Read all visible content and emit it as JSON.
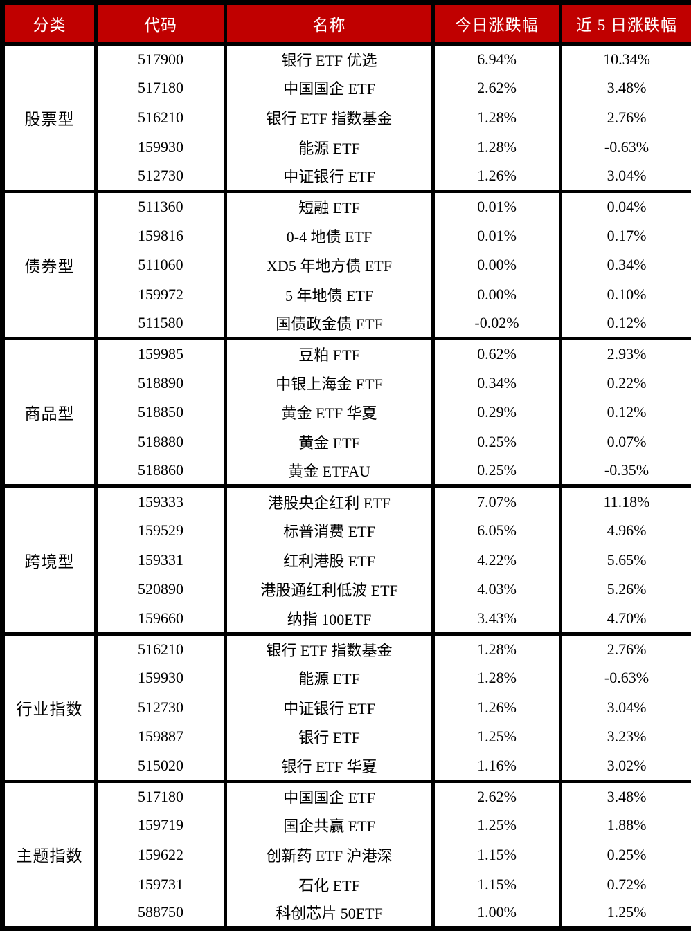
{
  "colors": {
    "header_bg": "#c00000",
    "header_text": "#ffffff",
    "border_color": "#000000",
    "body_bg": "#ffffff",
    "body_text": "#000000"
  },
  "chart_data": {
    "type": "table",
    "columns": [
      "分类",
      "代码",
      "名称",
      "今日涨跌幅",
      "近 5 日涨跌幅"
    ],
    "groups": [
      {
        "category": "股票型",
        "rows": [
          {
            "code": "517900",
            "name": "银行 ETF 优选",
            "today": "6.94%",
            "five_day": "10.34%"
          },
          {
            "code": "517180",
            "name": "中国国企 ETF",
            "today": "2.62%",
            "five_day": "3.48%"
          },
          {
            "code": "516210",
            "name": "银行 ETF 指数基金",
            "today": "1.28%",
            "five_day": "2.76%"
          },
          {
            "code": "159930",
            "name": "能源 ETF",
            "today": "1.28%",
            "five_day": "-0.63%"
          },
          {
            "code": "512730",
            "name": "中证银行 ETF",
            "today": "1.26%",
            "five_day": "3.04%"
          }
        ]
      },
      {
        "category": "债券型",
        "rows": [
          {
            "code": "511360",
            "name": "短融 ETF",
            "today": "0.01%",
            "five_day": "0.04%"
          },
          {
            "code": "159816",
            "name": "0-4 地债 ETF",
            "today": "0.01%",
            "five_day": "0.17%"
          },
          {
            "code": "511060",
            "name": "XD5 年地方债 ETF",
            "today": "0.00%",
            "five_day": "0.34%"
          },
          {
            "code": "159972",
            "name": "5 年地债 ETF",
            "today": "0.00%",
            "five_day": "0.10%"
          },
          {
            "code": "511580",
            "name": "国债政金债 ETF",
            "today": "-0.02%",
            "five_day": "0.12%"
          }
        ]
      },
      {
        "category": "商品型",
        "rows": [
          {
            "code": "159985",
            "name": "豆粕 ETF",
            "today": "0.62%",
            "five_day": "2.93%"
          },
          {
            "code": "518890",
            "name": "中银上海金 ETF",
            "today": "0.34%",
            "five_day": "0.22%"
          },
          {
            "code": "518850",
            "name": "黄金 ETF 华夏",
            "today": "0.29%",
            "five_day": "0.12%"
          },
          {
            "code": "518880",
            "name": "黄金 ETF",
            "today": "0.25%",
            "five_day": "0.07%"
          },
          {
            "code": "518860",
            "name": "黄金 ETFAU",
            "today": "0.25%",
            "five_day": "-0.35%"
          }
        ]
      },
      {
        "category": "跨境型",
        "rows": [
          {
            "code": "159333",
            "name": "港股央企红利 ETF",
            "today": "7.07%",
            "five_day": "11.18%"
          },
          {
            "code": "159529",
            "name": "标普消费 ETF",
            "today": "6.05%",
            "five_day": "4.96%"
          },
          {
            "code": "159331",
            "name": "红利港股 ETF",
            "today": "4.22%",
            "five_day": "5.65%"
          },
          {
            "code": "520890",
            "name": "港股通红利低波 ETF",
            "today": "4.03%",
            "five_day": "5.26%"
          },
          {
            "code": "159660",
            "name": "纳指 100ETF",
            "today": "3.43%",
            "five_day": "4.70%"
          }
        ]
      },
      {
        "category": "行业指数",
        "rows": [
          {
            "code": "516210",
            "name": "银行 ETF 指数基金",
            "today": "1.28%",
            "five_day": "2.76%"
          },
          {
            "code": "159930",
            "name": "能源 ETF",
            "today": "1.28%",
            "five_day": "-0.63%"
          },
          {
            "code": "512730",
            "name": "中证银行 ETF",
            "today": "1.26%",
            "five_day": "3.04%"
          },
          {
            "code": "159887",
            "name": "银行 ETF",
            "today": "1.25%",
            "five_day": "3.23%"
          },
          {
            "code": "515020",
            "name": "银行 ETF 华夏",
            "today": "1.16%",
            "five_day": "3.02%"
          }
        ]
      },
      {
        "category": "主题指数",
        "rows": [
          {
            "code": "517180",
            "name": "中国国企 ETF",
            "today": "2.62%",
            "five_day": "3.48%"
          },
          {
            "code": "159719",
            "name": "国企共赢 ETF",
            "today": "1.25%",
            "five_day": "1.88%"
          },
          {
            "code": "159622",
            "name": "创新药 ETF 沪港深",
            "today": "1.15%",
            "five_day": "0.25%"
          },
          {
            "code": "159731",
            "name": "石化 ETF",
            "today": "1.15%",
            "five_day": "0.72%"
          },
          {
            "code": "588750",
            "name": "科创芯片 50ETF",
            "today": "1.00%",
            "five_day": "1.25%"
          }
        ]
      }
    ]
  }
}
